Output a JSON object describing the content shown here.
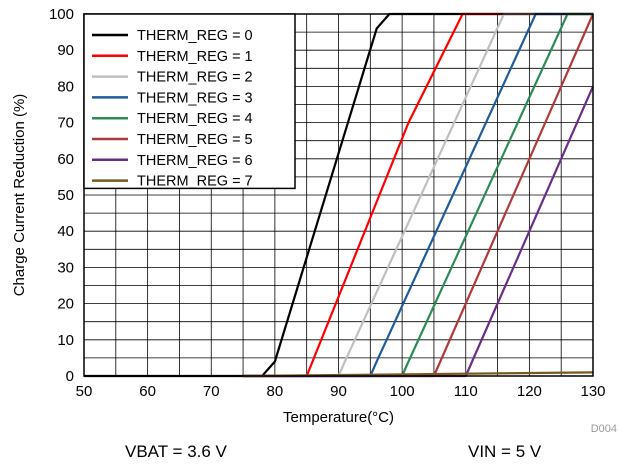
{
  "chart_data": {
    "type": "line",
    "title": "",
    "xlabel": "Temperature(°C)",
    "ylabel": "Charge Current Reduction (%)",
    "xlim": [
      50,
      130
    ],
    "ylim": [
      0,
      100
    ],
    "xticks": [
      50,
      60,
      70,
      80,
      90,
      100,
      110,
      120,
      130
    ],
    "yticks": [
      0,
      10,
      20,
      30,
      40,
      50,
      60,
      70,
      80,
      90,
      100
    ],
    "grid": true,
    "legend_position": "top-left",
    "series": [
      {
        "name": "THERM_REG = 0",
        "color": "#000000",
        "x": [
          50,
          78,
          80,
          96,
          98,
          130
        ],
        "y": [
          0,
          0,
          4,
          96,
          100,
          100
        ]
      },
      {
        "name": "THERM_REG = 1",
        "color": "#ff0000",
        "x": [
          75,
          85,
          101,
          109.5,
          130
        ],
        "y": [
          0,
          0,
          70,
          100,
          100
        ]
      },
      {
        "name": "THERM_REG = 2",
        "color": "#c0c0c0",
        "x": [
          75,
          90,
          91,
          116,
          130
        ],
        "y": [
          0,
          0,
          4,
          100,
          100
        ]
      },
      {
        "name": "THERM_REG = 3",
        "color": "#1f5c99",
        "x": [
          75,
          95,
          96,
          121,
          130
        ],
        "y": [
          0,
          0,
          4,
          100,
          100
        ]
      },
      {
        "name": "THERM_REG = 4",
        "color": "#2e8b57",
        "x": [
          75,
          100,
          101,
          126,
          130
        ],
        "y": [
          0,
          0,
          4,
          100,
          100
        ]
      },
      {
        "name": "THERM_REG = 5",
        "color": "#b03a3a",
        "x": [
          75,
          105,
          106,
          130
        ],
        "y": [
          0,
          0,
          4,
          100
        ]
      },
      {
        "name": "THERM_REG = 6",
        "color": "#6b2d8a",
        "x": [
          75,
          110,
          111,
          130
        ],
        "y": [
          0,
          0,
          4,
          80
        ]
      },
      {
        "name": "THERM_REG = 7",
        "color": "#7a5a1a",
        "x": [
          75,
          130
        ],
        "y": [
          0,
          1
        ]
      }
    ],
    "corner_code": "D004"
  },
  "caption": {
    "left": "VBAT = 3.6 V",
    "right": "VIN = 5 V"
  }
}
